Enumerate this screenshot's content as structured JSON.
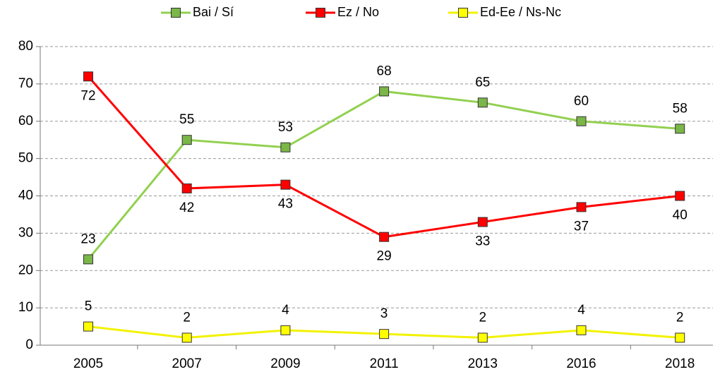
{
  "chart_data": {
    "type": "line",
    "categories": [
      "2005",
      "2007",
      "2009",
      "2011",
      "2013",
      "2016",
      "2018"
    ],
    "series": [
      {
        "name": "Bai / Sí",
        "color": "#92d050",
        "marker": "#7ab648",
        "labels": "above",
        "values": [
          23,
          55,
          53,
          68,
          65,
          60,
          58
        ]
      },
      {
        "name": "Ez / No",
        "color": "#ff0000",
        "marker": "#ff0000",
        "labels": "below",
        "values": [
          72,
          42,
          43,
          29,
          33,
          37,
          40
        ]
      },
      {
        "name": "Ed-Ee / Ns-Nc",
        "color": "#f2f200",
        "marker": "#ffff00",
        "labels": "above",
        "values": [
          5,
          2,
          4,
          3,
          2,
          4,
          2
        ]
      }
    ],
    "ylim": [
      0,
      80
    ],
    "yticks": [
      0,
      10,
      20,
      30,
      40,
      50,
      60,
      70,
      80
    ],
    "grid": true,
    "legend": "top"
  }
}
